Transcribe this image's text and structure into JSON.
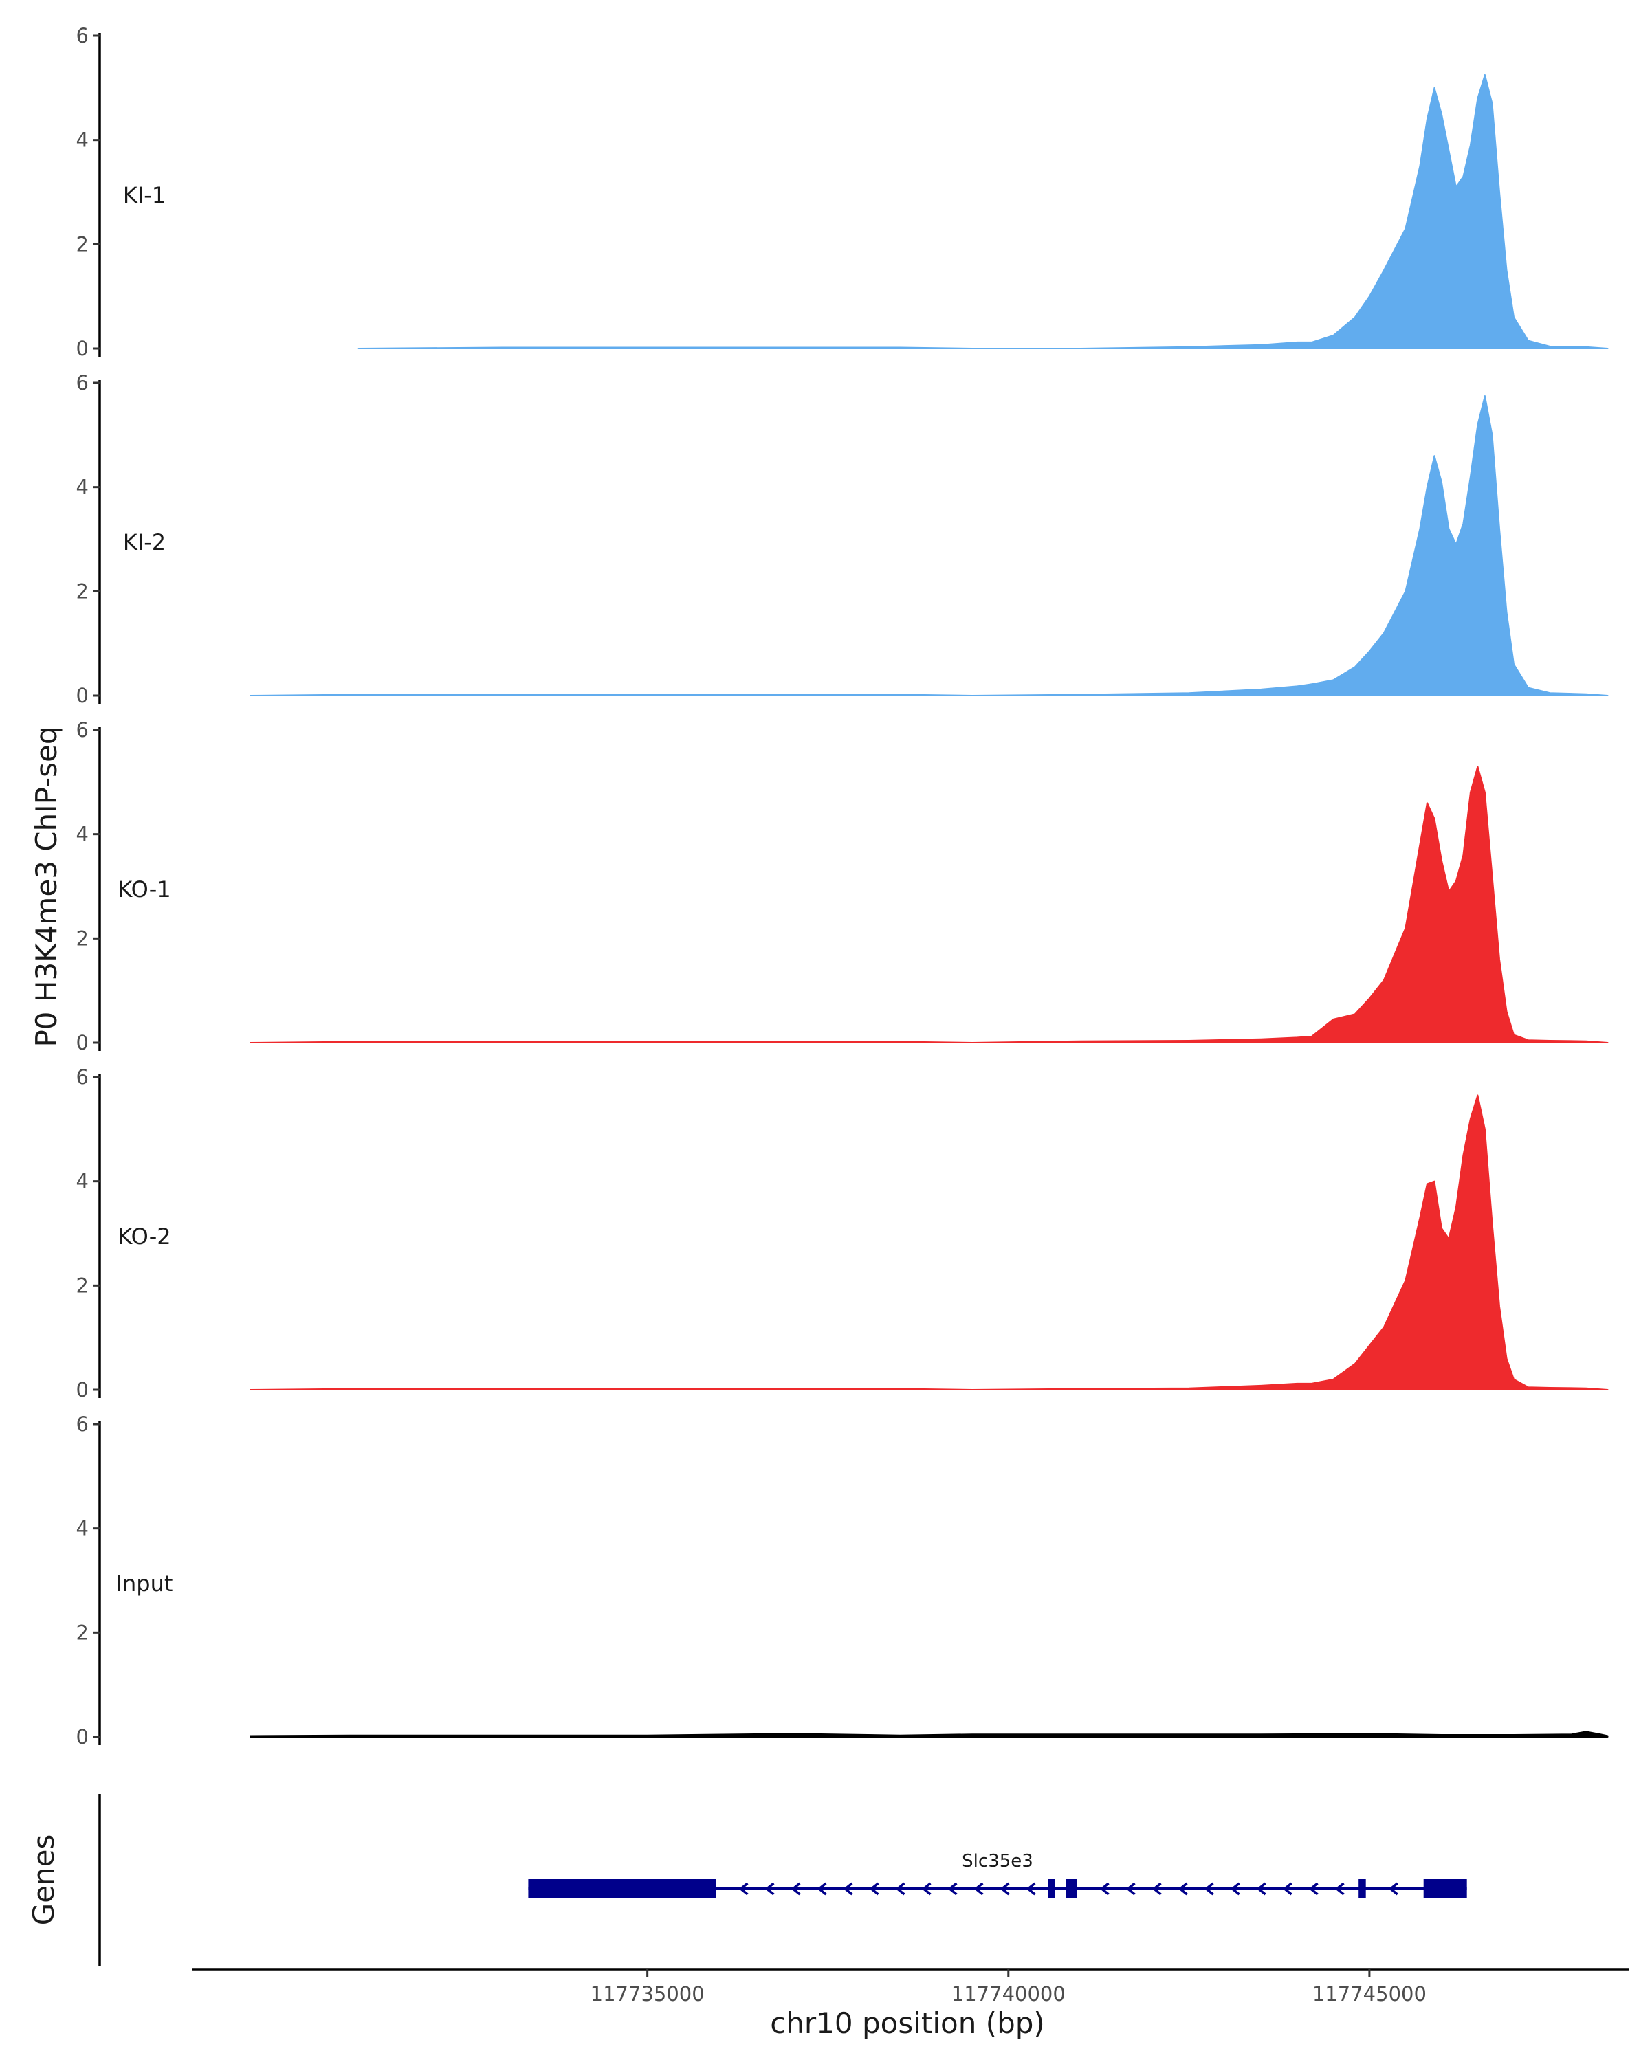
{
  "chart_data": {
    "type": "area",
    "ylabel": "P0 H3K4me3 ChIP-seq",
    "xlabel": "chr10 position (bp)",
    "xlim": [
      117728700,
      117748600
    ],
    "ylim": [
      0,
      6
    ],
    "y_ticks": [
      0,
      2,
      4,
      6
    ],
    "y_tick_labels": [
      "0",
      "2",
      "4",
      "6"
    ],
    "x_ticks": [
      117735000,
      117740000,
      117745000
    ],
    "x_tick_labels": [
      "117735000",
      "117740000",
      "117745000"
    ],
    "tracks": [
      {
        "name": "KI-1",
        "color": "#61acee",
        "x": [
          117731000,
          117733000,
          117735000,
          117737000,
          117738500,
          117739500,
          117741000,
          117742500,
          117743500,
          117744000,
          117744200,
          117744500,
          117744800,
          117745000,
          117745200,
          117745500,
          117745700,
          117745800,
          117745900,
          117746000,
          117746100,
          117746200,
          117746300,
          117746400,
          117746500,
          117746600,
          117746700,
          117746800,
          117746900,
          117747000,
          117747200,
          117747500,
          117748000,
          117748300
        ],
        "y": [
          0,
          0.02,
          0.02,
          0.02,
          0.02,
          0,
          0,
          0.03,
          0.07,
          0.12,
          0.12,
          0.25,
          0.6,
          1.0,
          1.5,
          2.3,
          3.5,
          4.4,
          5.0,
          4.5,
          3.8,
          3.1,
          3.3,
          3.9,
          4.8,
          5.25,
          4.7,
          3.0,
          1.5,
          0.6,
          0.15,
          0.04,
          0.03,
          0
        ]
      },
      {
        "name": "KI-2",
        "color": "#61acee",
        "x": [
          117729500,
          117731000,
          117733000,
          117735000,
          117737000,
          117738500,
          117739500,
          117741000,
          117742500,
          117743500,
          117744000,
          117744200,
          117744500,
          117744800,
          117745000,
          117745200,
          117745500,
          117745700,
          117745800,
          117745900,
          117746000,
          117746100,
          117746200,
          117746300,
          117746400,
          117746500,
          117746600,
          117746700,
          117746800,
          117746900,
          117747000,
          117747200,
          117747500,
          117748000,
          117748300
        ],
        "y": [
          0,
          0.02,
          0.02,
          0.02,
          0.02,
          0.02,
          0,
          0.02,
          0.05,
          0.12,
          0.18,
          0.22,
          0.3,
          0.55,
          0.85,
          1.2,
          2.0,
          3.2,
          4.0,
          4.6,
          4.1,
          3.2,
          2.9,
          3.3,
          4.2,
          5.2,
          5.75,
          5.0,
          3.2,
          1.6,
          0.6,
          0.15,
          0.05,
          0.03,
          0
        ]
      },
      {
        "name": "KO-1",
        "color": "#ee2a2d",
        "x": [
          117729500,
          117731000,
          117733000,
          117735000,
          117737000,
          117738500,
          117739500,
          117741000,
          117742500,
          117743500,
          117744000,
          117744200,
          117744500,
          117744800,
          117745000,
          117745200,
          117745500,
          117745700,
          117745800,
          117745900,
          117746000,
          117746100,
          117746200,
          117746300,
          117746400,
          117746500,
          117746600,
          117746700,
          117746800,
          117746900,
          117747000,
          117747200,
          117747500,
          117748000,
          117748300
        ],
        "y": [
          0,
          0.02,
          0.02,
          0.02,
          0.02,
          0.02,
          0,
          0.03,
          0.04,
          0.07,
          0.1,
          0.12,
          0.45,
          0.55,
          0.85,
          1.2,
          2.2,
          3.8,
          4.6,
          4.3,
          3.5,
          2.9,
          3.1,
          3.6,
          4.8,
          5.3,
          4.8,
          3.2,
          1.6,
          0.6,
          0.15,
          0.05,
          0.04,
          0.03,
          0
        ]
      },
      {
        "name": "KO-2",
        "color": "#ee2a2d",
        "x": [
          117729500,
          117731000,
          117733000,
          117735000,
          117737000,
          117738500,
          117739500,
          117741000,
          117742500,
          117743500,
          117744000,
          117744200,
          117744500,
          117744800,
          117745000,
          117745200,
          117745500,
          117745700,
          117745800,
          117745900,
          117746000,
          117746100,
          117746200,
          117746300,
          117746400,
          117746500,
          117746600,
          117746700,
          117746800,
          117746900,
          117747000,
          117747200,
          117747500,
          117748000,
          117748300
        ],
        "y": [
          0,
          0.02,
          0.02,
          0.02,
          0.02,
          0.02,
          0,
          0.02,
          0.03,
          0.08,
          0.12,
          0.12,
          0.2,
          0.5,
          0.85,
          1.2,
          2.1,
          3.3,
          3.95,
          4.0,
          3.1,
          2.9,
          3.5,
          4.5,
          5.2,
          5.65,
          5.0,
          3.2,
          1.6,
          0.6,
          0.2,
          0.05,
          0.04,
          0.03,
          0
        ]
      },
      {
        "name": "Input",
        "color": "#000000",
        "x": [
          117729500,
          117731000,
          117733000,
          117735000,
          117737000,
          117738500,
          117739500,
          117741000,
          117742500,
          117743500,
          117745000,
          117746000,
          117747000,
          117747800,
          117748000,
          117748200,
          117748300
        ],
        "y": [
          0.02,
          0.03,
          0.03,
          0.03,
          0.06,
          0.03,
          0.05,
          0.05,
          0.05,
          0.05,
          0.06,
          0.04,
          0.04,
          0.05,
          0.1,
          0.05,
          0.02
        ]
      }
    ],
    "gene_track": {
      "ylabel": "Genes",
      "gene_name": "Slc35e3",
      "color": "#00008b",
      "strand": "-",
      "start": 117733350,
      "end": 117746350,
      "exons": [
        {
          "start": 117733350,
          "end": 117735950
        },
        {
          "start": 117740550,
          "end": 117740650
        },
        {
          "start": 117740800,
          "end": 117740950
        },
        {
          "start": 117744850,
          "end": 117744950
        },
        {
          "start": 117745750,
          "end": 117746350
        }
      ]
    }
  }
}
